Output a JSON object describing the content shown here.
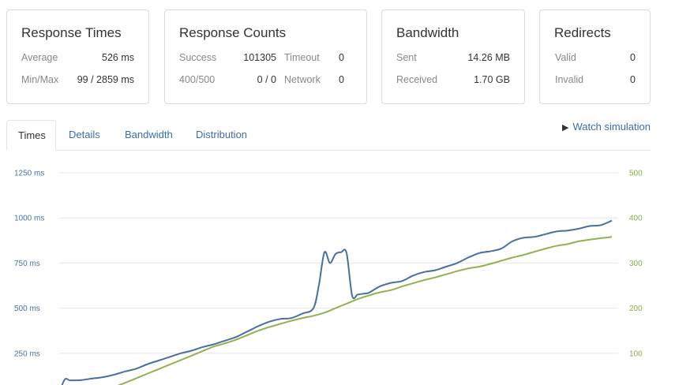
{
  "summary": {
    "response_times": {
      "title": "Response Times",
      "average_label": "Average",
      "average_value": "526 ms",
      "minmax_label": "Min/Max",
      "minmax_value": "99 / 2859 ms"
    },
    "response_counts": {
      "title": "Response Counts",
      "success_label": "Success",
      "success_value": "101305",
      "timeout_label": "Timeout",
      "timeout_value": "0",
      "errors_label": "400/500",
      "errors_value": "0 / 0",
      "network_label": "Network",
      "network_value": "0"
    },
    "bandwidth": {
      "title": "Bandwidth",
      "sent_label": "Sent",
      "sent_value": "14.26 MB",
      "received_label": "Received",
      "received_value": "1.70 GB"
    },
    "redirects": {
      "title": "Redirects",
      "valid_label": "Valid",
      "valid_value": "0",
      "invalid_label": "Invalid",
      "invalid_value": "0"
    }
  },
  "tabs": [
    "Times",
    "Details",
    "Bandwidth",
    "Distribution"
  ],
  "active_tab": "Times",
  "watch_label": "Watch simulation",
  "colors": {
    "response_time_line": "#4a6f9c",
    "count_line": "#94b050",
    "link": "#3d6ea3",
    "grid": "#e6e6e6"
  },
  "chart_data": {
    "type": "line",
    "left_axis": {
      "ticks": [
        250,
        500,
        750,
        1000,
        1250
      ],
      "tick_labels": [
        "250 ms",
        "500 ms",
        "750 ms",
        "1000 ms",
        "1250 ms"
      ],
      "range": [
        0,
        1250
      ]
    },
    "right_axis": {
      "ticks": [
        100,
        200,
        300,
        400,
        500
      ],
      "tick_labels": [
        "100",
        "200",
        "300",
        "400",
        "500"
      ],
      "range": [
        0,
        500
      ]
    },
    "x_range": [
      0,
      100
    ],
    "grid": true,
    "series": [
      {
        "axis": "left",
        "color": "#4a6f9c",
        "x": [
          0,
          1,
          2,
          4,
          6,
          8,
          10,
          12,
          14,
          16,
          18,
          20,
          22,
          24,
          26,
          28,
          30,
          32,
          34,
          36,
          38,
          40,
          42,
          44,
          46,
          47,
          48,
          49,
          50,
          51,
          52,
          53,
          54,
          55,
          56,
          58,
          60,
          62,
          64,
          66,
          68,
          70,
          72,
          74,
          76,
          78,
          80,
          82,
          84,
          86,
          88,
          90,
          92,
          94,
          96,
          98,
          100
        ],
        "values": [
          30,
          105,
          100,
          102,
          110,
          118,
          132,
          150,
          165,
          190,
          210,
          230,
          250,
          265,
          285,
          300,
          320,
          340,
          370,
          400,
          425,
          440,
          445,
          470,
          500,
          630,
          810,
          750,
          800,
          810,
          805,
          570,
          575,
          580,
          585,
          620,
          640,
          650,
          680,
          700,
          710,
          730,
          750,
          780,
          805,
          815,
          830,
          870,
          890,
          895,
          910,
          925,
          930,
          940,
          955,
          960,
          985
        ]
      },
      {
        "axis": "right",
        "color": "#94b050",
        "x": [
          6,
          8,
          10,
          12,
          14,
          16,
          18,
          20,
          22,
          24,
          26,
          28,
          30,
          32,
          34,
          36,
          38,
          40,
          42,
          44,
          46,
          48,
          50,
          52,
          54,
          56,
          58,
          60,
          62,
          64,
          66,
          68,
          70,
          72,
          74,
          76,
          78,
          80,
          82,
          84,
          86,
          88,
          90,
          92,
          94,
          96,
          98,
          100
        ],
        "values": [
          10,
          15,
          25,
          35,
          45,
          55,
          65,
          75,
          85,
          95,
          105,
          115,
          122,
          130,
          140,
          150,
          158,
          165,
          172,
          178,
          183,
          190,
          200,
          210,
          220,
          228,
          235,
          240,
          248,
          255,
          262,
          268,
          275,
          282,
          288,
          292,
          298,
          305,
          312,
          318,
          325,
          332,
          338,
          342,
          348,
          352,
          355,
          358
        ]
      }
    ]
  }
}
